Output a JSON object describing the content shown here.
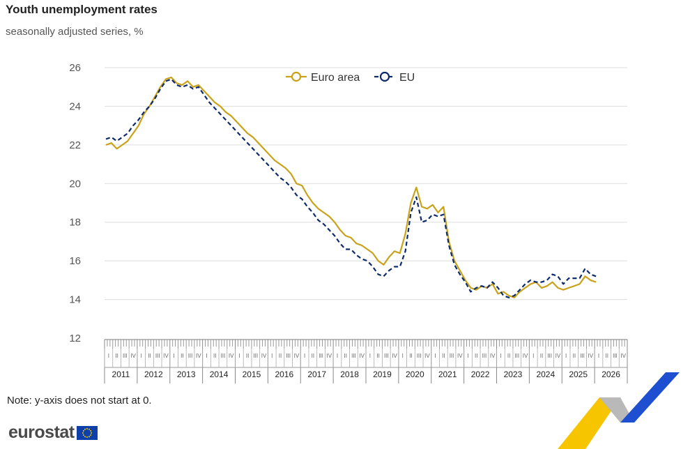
{
  "title": "Youth unemployment rates",
  "subtitle": "seasonally adjusted series, %",
  "note": "Note: y-axis does not start at 0.",
  "logo": {
    "text": "eurostat",
    "flag_icon": "eu-flag-icon"
  },
  "colors": {
    "euro_area": "#c8a31a",
    "eu": "#0d2a6b",
    "grid": "#dddddd",
    "accent_blue": "#1f4fd1",
    "accent_yellow": "#f7c500"
  },
  "chart_data": {
    "type": "line",
    "title": "Youth unemployment rates",
    "subtitle": "seasonally adjusted series, %",
    "xlabel": "",
    "ylabel": "",
    "ylim": [
      12,
      26
    ],
    "yticks": [
      12,
      14,
      16,
      18,
      20,
      22,
      24,
      26
    ],
    "xlim": [
      "2011-01",
      "2026-12"
    ],
    "x_years": [
      "2011",
      "2012",
      "2013",
      "2014",
      "2015",
      "2016",
      "2017",
      "2018",
      "2019",
      "2020",
      "2021",
      "2022",
      "2023",
      "2024",
      "2025",
      "2026"
    ],
    "quarter_labels": [
      "I",
      "II",
      "III",
      "IV"
    ],
    "grid": true,
    "legend_position": "top-center",
    "series": [
      {
        "name": "Euro area",
        "color": "#c8a31a",
        "dashed": false,
        "points": [
          [
            "2011-01",
            22.0
          ],
          [
            "2011-03",
            22.1
          ],
          [
            "2011-05",
            21.8
          ],
          [
            "2011-07",
            22.0
          ],
          [
            "2011-09",
            22.2
          ],
          [
            "2011-11",
            22.6
          ],
          [
            "2012-01",
            23.0
          ],
          [
            "2012-03",
            23.6
          ],
          [
            "2012-05",
            24.0
          ],
          [
            "2012-07",
            24.5
          ],
          [
            "2012-09",
            25.0
          ],
          [
            "2012-11",
            25.4
          ],
          [
            "2013-01",
            25.5
          ],
          [
            "2013-03",
            25.2
          ],
          [
            "2013-05",
            25.1
          ],
          [
            "2013-07",
            25.3
          ],
          [
            "2013-09",
            25.0
          ],
          [
            "2013-11",
            25.1
          ],
          [
            "2014-01",
            24.8
          ],
          [
            "2014-03",
            24.5
          ],
          [
            "2014-05",
            24.2
          ],
          [
            "2014-07",
            24.0
          ],
          [
            "2014-09",
            23.7
          ],
          [
            "2014-11",
            23.5
          ],
          [
            "2015-01",
            23.2
          ],
          [
            "2015-03",
            22.9
          ],
          [
            "2015-05",
            22.6
          ],
          [
            "2015-07",
            22.4
          ],
          [
            "2015-09",
            22.1
          ],
          [
            "2015-11",
            21.8
          ],
          [
            "2016-01",
            21.5
          ],
          [
            "2016-03",
            21.2
          ],
          [
            "2016-05",
            21.0
          ],
          [
            "2016-07",
            20.8
          ],
          [
            "2016-09",
            20.5
          ],
          [
            "2016-11",
            20.0
          ],
          [
            "2017-01",
            19.9
          ],
          [
            "2017-03",
            19.4
          ],
          [
            "2017-05",
            19.0
          ],
          [
            "2017-07",
            18.7
          ],
          [
            "2017-09",
            18.5
          ],
          [
            "2017-11",
            18.3
          ],
          [
            "2018-01",
            18.0
          ],
          [
            "2018-03",
            17.6
          ],
          [
            "2018-05",
            17.3
          ],
          [
            "2018-07",
            17.2
          ],
          [
            "2018-09",
            16.9
          ],
          [
            "2018-11",
            16.8
          ],
          [
            "2019-01",
            16.6
          ],
          [
            "2019-03",
            16.4
          ],
          [
            "2019-05",
            16.0
          ],
          [
            "2019-07",
            15.8
          ],
          [
            "2019-09",
            16.2
          ],
          [
            "2019-11",
            16.5
          ],
          [
            "2020-01",
            16.4
          ],
          [
            "2020-03",
            17.4
          ],
          [
            "2020-05",
            19.0
          ],
          [
            "2020-07",
            19.8
          ],
          [
            "2020-09",
            18.8
          ],
          [
            "2020-11",
            18.7
          ],
          [
            "2021-01",
            18.9
          ],
          [
            "2021-03",
            18.5
          ],
          [
            "2021-05",
            18.8
          ],
          [
            "2021-07",
            17.0
          ],
          [
            "2021-09",
            16.0
          ],
          [
            "2021-11",
            15.5
          ],
          [
            "2022-01",
            15.0
          ],
          [
            "2022-03",
            14.6
          ],
          [
            "2022-05",
            14.5
          ],
          [
            "2022-07",
            14.7
          ],
          [
            "2022-09",
            14.6
          ],
          [
            "2022-11",
            14.8
          ],
          [
            "2023-01",
            14.3
          ],
          [
            "2023-03",
            14.4
          ],
          [
            "2023-05",
            14.2
          ],
          [
            "2023-07",
            14.1
          ],
          [
            "2023-09",
            14.4
          ],
          [
            "2023-11",
            14.6
          ],
          [
            "2024-01",
            14.8
          ],
          [
            "2024-03",
            14.9
          ],
          [
            "2024-05",
            14.6
          ],
          [
            "2024-07",
            14.7
          ],
          [
            "2024-09",
            14.9
          ],
          [
            "2024-11",
            14.6
          ],
          [
            "2025-01",
            14.5
          ],
          [
            "2025-03",
            14.6
          ],
          [
            "2025-05",
            14.7
          ],
          [
            "2025-07",
            14.8
          ],
          [
            "2025-09",
            15.2
          ],
          [
            "2025-11",
            15.0
          ],
          [
            "2026-01",
            14.9
          ]
        ]
      },
      {
        "name": "EU",
        "color": "#0d2a6b",
        "dashed": true,
        "points": [
          [
            "2011-01",
            22.3
          ],
          [
            "2011-03",
            22.4
          ],
          [
            "2011-05",
            22.2
          ],
          [
            "2011-07",
            22.4
          ],
          [
            "2011-09",
            22.6
          ],
          [
            "2011-11",
            23.0
          ],
          [
            "2012-01",
            23.3
          ],
          [
            "2012-03",
            23.7
          ],
          [
            "2012-05",
            24.0
          ],
          [
            "2012-07",
            24.4
          ],
          [
            "2012-09",
            24.9
          ],
          [
            "2012-11",
            25.3
          ],
          [
            "2013-01",
            25.4
          ],
          [
            "2013-03",
            25.1
          ],
          [
            "2013-05",
            25.0
          ],
          [
            "2013-07",
            25.1
          ],
          [
            "2013-09",
            24.9
          ],
          [
            "2013-11",
            25.0
          ],
          [
            "2014-01",
            24.6
          ],
          [
            "2014-03",
            24.2
          ],
          [
            "2014-05",
            23.9
          ],
          [
            "2014-07",
            23.6
          ],
          [
            "2014-09",
            23.3
          ],
          [
            "2014-11",
            23.0
          ],
          [
            "2015-01",
            22.7
          ],
          [
            "2015-03",
            22.4
          ],
          [
            "2015-05",
            22.1
          ],
          [
            "2015-07",
            21.8
          ],
          [
            "2015-09",
            21.5
          ],
          [
            "2015-11",
            21.2
          ],
          [
            "2016-01",
            20.9
          ],
          [
            "2016-03",
            20.6
          ],
          [
            "2016-05",
            20.3
          ],
          [
            "2016-07",
            20.1
          ],
          [
            "2016-09",
            19.8
          ],
          [
            "2016-11",
            19.4
          ],
          [
            "2017-01",
            19.2
          ],
          [
            "2017-03",
            18.8
          ],
          [
            "2017-05",
            18.5
          ],
          [
            "2017-07",
            18.1
          ],
          [
            "2017-09",
            17.9
          ],
          [
            "2017-11",
            17.6
          ],
          [
            "2018-01",
            17.3
          ],
          [
            "2018-03",
            16.9
          ],
          [
            "2018-05",
            16.6
          ],
          [
            "2018-07",
            16.6
          ],
          [
            "2018-09",
            16.3
          ],
          [
            "2018-11",
            16.1
          ],
          [
            "2019-01",
            16.0
          ],
          [
            "2019-03",
            15.7
          ],
          [
            "2019-05",
            15.3
          ],
          [
            "2019-07",
            15.2
          ],
          [
            "2019-09",
            15.5
          ],
          [
            "2019-11",
            15.7
          ],
          [
            "2020-01",
            15.7
          ],
          [
            "2020-03",
            16.5
          ],
          [
            "2020-05",
            18.5
          ],
          [
            "2020-07",
            19.3
          ],
          [
            "2020-09",
            18.0
          ],
          [
            "2020-11",
            18.1
          ],
          [
            "2021-01",
            18.4
          ],
          [
            "2021-03",
            18.3
          ],
          [
            "2021-05",
            18.4
          ],
          [
            "2021-07",
            16.8
          ],
          [
            "2021-09",
            15.8
          ],
          [
            "2021-11",
            15.3
          ],
          [
            "2022-01",
            14.9
          ],
          [
            "2022-03",
            14.4
          ],
          [
            "2022-05",
            14.6
          ],
          [
            "2022-07",
            14.7
          ],
          [
            "2022-09",
            14.6
          ],
          [
            "2022-11",
            14.9
          ],
          [
            "2023-01",
            14.6
          ],
          [
            "2023-03",
            14.2
          ],
          [
            "2023-05",
            14.1
          ],
          [
            "2023-07",
            14.2
          ],
          [
            "2023-09",
            14.5
          ],
          [
            "2023-11",
            14.8
          ],
          [
            "2024-01",
            15.0
          ],
          [
            "2024-03",
            14.9
          ],
          [
            "2024-05",
            14.9
          ],
          [
            "2024-07",
            15.0
          ],
          [
            "2024-09",
            15.3
          ],
          [
            "2024-11",
            15.2
          ],
          [
            "2025-01",
            14.8
          ],
          [
            "2025-03",
            15.1
          ],
          [
            "2025-05",
            15.1
          ],
          [
            "2025-07",
            15.1
          ],
          [
            "2025-09",
            15.6
          ],
          [
            "2025-11",
            15.3
          ],
          [
            "2026-01",
            15.2
          ]
        ]
      }
    ]
  }
}
